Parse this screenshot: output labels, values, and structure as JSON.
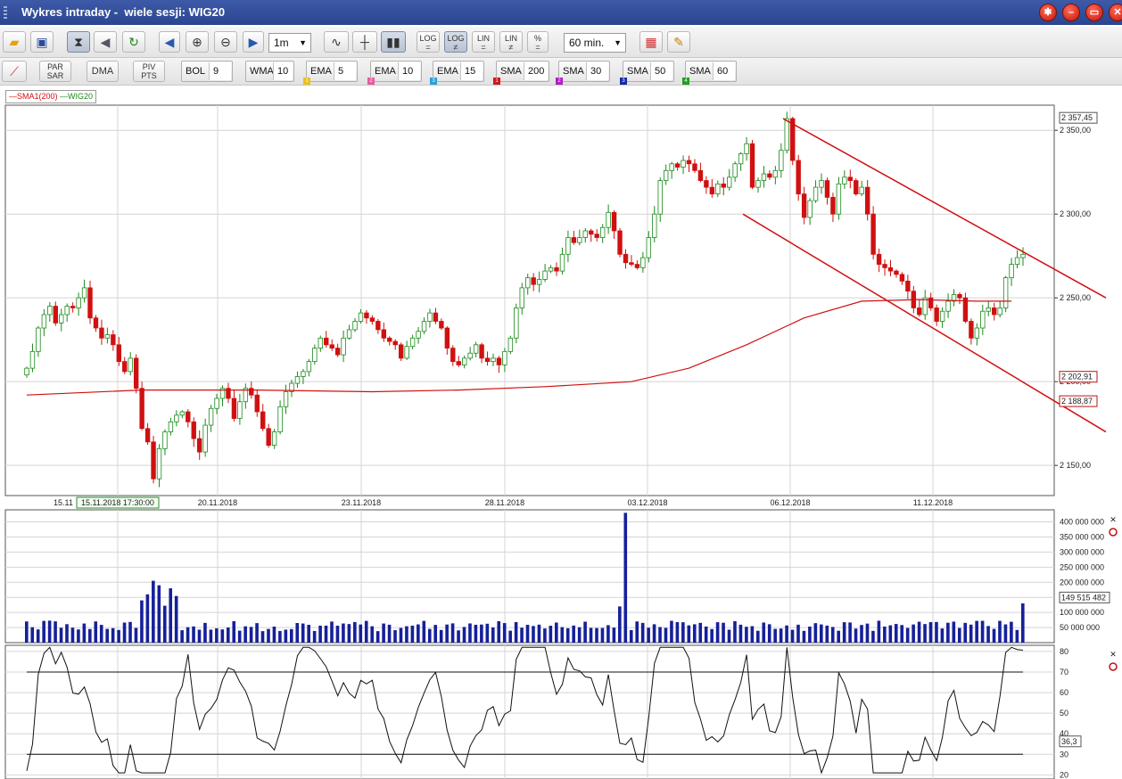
{
  "window": {
    "title": "Wykres intraday -  wiele sesji: WIG20"
  },
  "toolbar": {
    "interval_select": "1m",
    "period_select": "60 min.",
    "log1": "LOG",
    "log2": "LOG",
    "lin1": "LIN",
    "lin2": "LIN",
    "pct": "%",
    "par_sar": "PAR SAR",
    "dma": "DMA",
    "piv_pts": "PIV PTS"
  },
  "indicators": [
    {
      "name": "BOL",
      "value": "9",
      "badge": "",
      "color": ""
    },
    {
      "name": "WMA",
      "value": "10",
      "badge": "",
      "color": ""
    },
    {
      "name": "EMA",
      "value": "5",
      "badge": "1",
      "color": "#e8c020"
    },
    {
      "name": "EMA",
      "value": "10",
      "badge": "2",
      "color": "#e85aa0"
    },
    {
      "name": "EMA",
      "value": "15",
      "badge": "3",
      "color": "#2aa0d8"
    },
    {
      "name": "SMA",
      "value": "200",
      "badge": "1",
      "color": "#d01818"
    },
    {
      "name": "SMA",
      "value": "30",
      "badge": "2",
      "color": "#b020c0"
    },
    {
      "name": "SMA",
      "value": "50",
      "badge": "3",
      "color": "#1828a8"
    },
    {
      "name": "SMA",
      "value": "60",
      "badge": "4",
      "color": "#20a020"
    }
  ],
  "legend": {
    "sma": "SMA1(200)",
    "wig": "WIG20",
    "sma_color": "#d01010",
    "wig_color": "#1a8a1a"
  },
  "colors": {
    "up": "#1a8a1a",
    "down": "#d01010",
    "volume": "#16209a",
    "channel": "#d01010"
  },
  "chart_data": [
    {
      "type": "candlestick",
      "series_name": "WIG20",
      "x_ticks": [
        "15.11",
        "15.11.2018 17:30:00",
        "20.11.2018",
        "23.11.2018",
        "28.11.2018",
        "03.12.2018",
        "06.12.2018",
        "11.12.2018"
      ],
      "y_ticks": [
        "2 350,00",
        "2 300,00",
        "2 250,00",
        "2 200,00",
        "2 150,00"
      ],
      "ylim": [
        2132,
        2365
      ],
      "value_labels": {
        "last_high": "2 357,45",
        "sma200": "2 202,91",
        "channel_lower": "2 188,87"
      },
      "overlay": {
        "name": "SMA1(200)"
      },
      "trend_channel": {
        "upper": [
          [
            2357,
            2275
          ],
          [
            2245,
            2250
          ]
        ],
        "lower": [
          [
            2300,
            2240
          ],
          [
            2196,
            2170
          ]
        ]
      },
      "closes": [
        2208,
        2218,
        2232,
        2240,
        2245,
        2235,
        2240,
        2245,
        2244,
        2250,
        2256,
        2238,
        2232,
        2226,
        2228,
        2222,
        2212,
        2206,
        2214,
        2196,
        2172,
        2164,
        2142,
        2160,
        2170,
        2176,
        2180,
        2182,
        2176,
        2166,
        2158,
        2174,
        2184,
        2190,
        2196,
        2190,
        2178,
        2188,
        2196,
        2192,
        2182,
        2172,
        2162,
        2170,
        2185,
        2194,
        2199,
        2203,
        2206,
        2212,
        2220,
        2226,
        2222,
        2220,
        2216,
        2226,
        2231,
        2236,
        2241,
        2238,
        2236,
        2231,
        2226,
        2224,
        2222,
        2214,
        2221,
        2226,
        2230,
        2236,
        2241,
        2236,
        2232,
        2220,
        2212,
        2210,
        2214,
        2217,
        2222,
        2214,
        2212,
        2214,
        2210,
        2218,
        2226,
        2244,
        2256,
        2262,
        2258,
        2261,
        2266,
        2268,
        2266,
        2276,
        2286,
        2283,
        2286,
        2290,
        2288,
        2286,
        2292,
        2301,
        2290,
        2276,
        2271,
        2270,
        2268,
        2274,
        2286,
        2300,
        2320,
        2326,
        2330,
        2328,
        2332,
        2330,
        2326,
        2320,
        2316,
        2312,
        2318,
        2316,
        2322,
        2330,
        2336,
        2342,
        2316,
        2320,
        2324,
        2322,
        2326,
        2338,
        2357,
        2332,
        2312,
        2298,
        2308,
        2316,
        2320,
        2310,
        2300,
        2318,
        2322,
        2320,
        2312,
        2316,
        2300,
        2276,
        2270,
        2268,
        2266,
        2264,
        2260,
        2254,
        2244,
        2240,
        2250,
        2244,
        2236,
        2242,
        2248,
        2252,
        2250,
        2236,
        2226,
        2232,
        2242,
        2244,
        2240,
        2244,
        2262,
        2270,
        2274,
        2276
      ]
    },
    {
      "type": "bar",
      "series_name": "Volume",
      "y_ticks": [
        "400 000 000",
        "350 000 000",
        "300 000 000",
        "250 000 000",
        "200 000 000",
        "150 000 000",
        "100 000 000",
        "50 000 000"
      ],
      "ylim": [
        0,
        440000000
      ],
      "last_value_label": "149 515 482"
    },
    {
      "type": "line",
      "series_name": "RSI",
      "y_ticks": [
        "80",
        "70",
        "60",
        "50",
        "40",
        "30",
        "20"
      ],
      "ylim": [
        18,
        83
      ],
      "levels": [
        70,
        30
      ],
      "last_value_label": "36,3"
    }
  ]
}
